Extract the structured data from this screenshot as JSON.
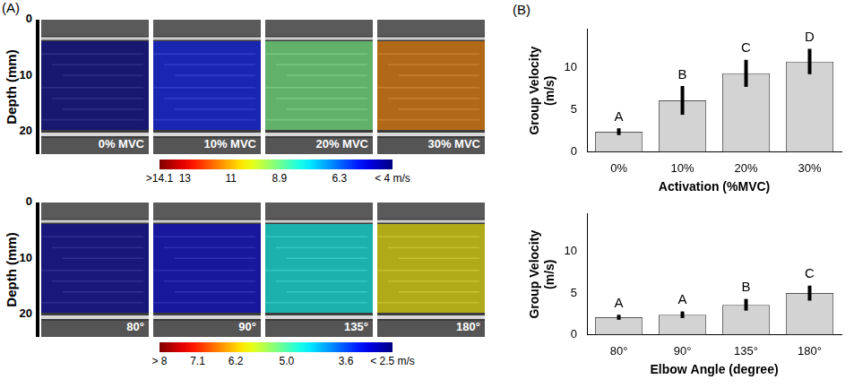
{
  "panel_a": {
    "label": "(A)",
    "rows": [
      {
        "y_label": "Depth (mm)",
        "ylim": [
          0,
          24
        ],
        "yticks": [
          0,
          10,
          20
        ],
        "images": [
          {
            "label": "0% MVC",
            "velocity": 4.2
          },
          {
            "label": "10% MVC",
            "velocity": 5.5
          },
          {
            "label": "20% MVC",
            "velocity": 9
          },
          {
            "label": "30% MVC",
            "velocity": 11.5
          }
        ],
        "colorbar": {
          "range": [
            4,
            14.1
          ],
          "ticks": [
            {
              "value": 14.1,
              "label": ">14.1"
            },
            13,
            11,
            8.9,
            6.3,
            {
              "value": 4,
              "label": "< 4 m/s"
            }
          ]
        }
      },
      {
        "y_label": "Depth (mm)",
        "ylim": [
          0,
          24
        ],
        "yticks": [
          0,
          10,
          20
        ],
        "images": [
          {
            "label": "80°",
            "velocity": 2.7
          },
          {
            "label": "90°",
            "velocity": 3.0
          },
          {
            "label": "135°",
            "velocity": 4.6
          },
          {
            "label": "180°",
            "velocity": 6.0
          }
        ],
        "colorbar": {
          "range": [
            2.5,
            8
          ],
          "ticks": [
            {
              "value": 8,
              "label": "> 8"
            },
            7.1,
            6.2,
            {
              "value": 5,
              "label": "5.0"
            },
            3.6,
            {
              "value": 2.5,
              "label": "< 2.5 m/s"
            }
          ]
        }
      }
    ]
  },
  "panel_b_label": "(B)",
  "chart_data": [
    {
      "type": "bar",
      "categories": [
        "0%",
        "10%",
        "20%",
        "30%"
      ],
      "values": [
        2.4,
        6.1,
        9.3,
        10.7
      ],
      "errors": [
        0.4,
        1.7,
        1.6,
        1.5
      ],
      "annotations": [
        "A",
        "B",
        "C",
        "D"
      ],
      "x_label": "Activation (%MVC)",
      "y_label": "Group Velocity (m/s)",
      "ylim": [
        0,
        14.5
      ],
      "yticks": [
        0,
        5,
        10
      ],
      "color": "#d3d3d3",
      "grid": false
    },
    {
      "type": "bar",
      "categories": [
        "80°",
        "90°",
        "135°",
        "180°"
      ],
      "values": [
        2.1,
        2.4,
        3.6,
        5.0
      ],
      "errors": [
        0.3,
        0.4,
        0.7,
        0.9
      ],
      "annotations": [
        "A",
        "A",
        "B",
        "C"
      ],
      "x_label": "Elbow Angle (degree)",
      "y_label": "Group Velocity (m/s)",
      "ylim": [
        0,
        14.5
      ],
      "yticks": [
        0,
        5,
        10
      ],
      "color": "#d3d3d3",
      "grid": false
    }
  ]
}
